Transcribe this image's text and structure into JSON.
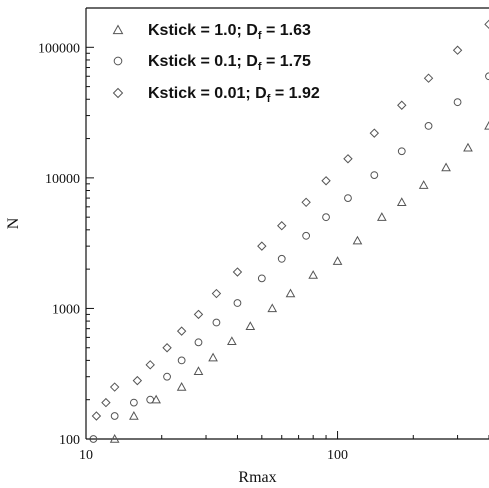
{
  "chart_data": {
    "type": "scatter",
    "title": "",
    "xlabel": "Rmax",
    "ylabel": "N",
    "xscale": "log",
    "yscale": "log",
    "xlim": [
      10,
      400
    ],
    "ylim": [
      100,
      200000
    ],
    "x_ticks": [
      10,
      100
    ],
    "x_tick_labels": [
      "10",
      "100"
    ],
    "y_ticks": [
      100,
      1000,
      10000,
      100000
    ],
    "y_tick_labels": [
      "100",
      "1000",
      "10000",
      "100000"
    ],
    "grid": false,
    "legend_position": "top-left",
    "series": [
      {
        "name": "Kstick = 1.0; D",
        "name_sub": "f",
        "name_suffix": " = 1.63",
        "marker": "triangle",
        "color": "#555555",
        "points": [
          [
            13,
            100
          ],
          [
            15.5,
            150
          ],
          [
            19,
            200
          ],
          [
            24,
            250
          ],
          [
            28,
            330
          ],
          [
            32,
            420
          ],
          [
            38,
            560
          ],
          [
            45,
            730
          ],
          [
            55,
            1000
          ],
          [
            65,
            1300
          ],
          [
            80,
            1800
          ],
          [
            100,
            2300
          ],
          [
            120,
            3300
          ],
          [
            150,
            5000
          ],
          [
            180,
            6500
          ],
          [
            220,
            8800
          ],
          [
            270,
            12000
          ],
          [
            330,
            17000
          ],
          [
            400,
            25000
          ]
        ]
      },
      {
        "name": "Kstick = 0.1; D",
        "name_sub": "f",
        "name_suffix": " = 1.75",
        "marker": "circle",
        "color": "#555555",
        "points": [
          [
            10.7,
            100
          ],
          [
            13,
            150
          ],
          [
            15.5,
            190
          ],
          [
            18,
            200
          ],
          [
            21,
            300
          ],
          [
            24,
            400
          ],
          [
            28,
            550
          ],
          [
            33,
            780
          ],
          [
            40,
            1100
          ],
          [
            50,
            1700
          ],
          [
            60,
            2400
          ],
          [
            75,
            3600
          ],
          [
            90,
            5000
          ],
          [
            110,
            7000
          ],
          [
            140,
            10500
          ],
          [
            180,
            16000
          ],
          [
            230,
            25000
          ],
          [
            300,
            38000
          ],
          [
            400,
            60000
          ]
        ]
      },
      {
        "name": "Kstick = 0.01; D",
        "name_sub": "f",
        "name_suffix": " = 1.92",
        "marker": "diamond",
        "color": "#555555",
        "points": [
          [
            11,
            150
          ],
          [
            12,
            190
          ],
          [
            13,
            250
          ],
          [
            16,
            280
          ],
          [
            18,
            370
          ],
          [
            21,
            500
          ],
          [
            24,
            670
          ],
          [
            28,
            900
          ],
          [
            33,
            1300
          ],
          [
            40,
            1900
          ],
          [
            50,
            3000
          ],
          [
            60,
            4300
          ],
          [
            75,
            6500
          ],
          [
            90,
            9500
          ],
          [
            110,
            14000
          ],
          [
            140,
            22000
          ],
          [
            180,
            36000
          ],
          [
            230,
            58000
          ],
          [
            300,
            95000
          ],
          [
            400,
            150000
          ]
        ]
      }
    ]
  }
}
